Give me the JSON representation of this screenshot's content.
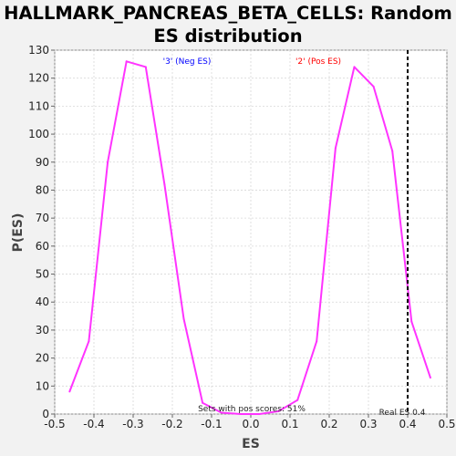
{
  "chart_data": {
    "type": "line",
    "title": "HALLMARK_PANCREAS_BETA_CELLS: Random ES distribution",
    "title_lines": [
      "HALLMARK_PANCREAS_BETA_CELLS: Random",
      "ES distribution"
    ],
    "xlabel": "ES",
    "ylabel": "P(ES)",
    "xlim": [
      -0.5,
      0.5
    ],
    "ylim": [
      0,
      130
    ],
    "xticks": [
      -0.5,
      -0.4,
      -0.3,
      -0.2,
      -0.1,
      0.0,
      0.1,
      0.2,
      0.3,
      0.4,
      0.5
    ],
    "xtick_labels": [
      "-0.5",
      "-0.4",
      "-0.3",
      "-0.2",
      "-0.1",
      "0.0",
      "0.1",
      "0.2",
      "0.3",
      "0.4",
      "0.5"
    ],
    "yticks": [
      0,
      10,
      20,
      30,
      40,
      50,
      60,
      70,
      80,
      90,
      100,
      110,
      120,
      130
    ],
    "ytick_labels": [
      "0",
      "10",
      "20",
      "30",
      "40",
      "50",
      "60",
      "70",
      "80",
      "90",
      "100",
      "110",
      "120",
      "130"
    ],
    "grid": true,
    "series": [
      {
        "color": "#ff33ff",
        "x": [
          -0.462,
          -0.413,
          -0.365,
          -0.317,
          -0.268,
          -0.22,
          -0.171,
          -0.123,
          -0.075,
          -0.026,
          0.022,
          0.071,
          0.119,
          0.168,
          0.216,
          0.264,
          0.313,
          0.361,
          0.41,
          0.458
        ],
        "y": [
          8,
          26,
          90,
          126,
          124,
          82,
          34,
          4,
          0.5,
          0,
          0,
          1,
          5,
          26,
          95,
          124,
          117,
          94,
          33,
          13
        ]
      }
    ],
    "real_es": {
      "x": 0.4,
      "label": "Real ES 0.4",
      "color": "#000000"
    },
    "annotations": {
      "neg_label": "'3' (Neg ES)",
      "neg_color": "#0000ff",
      "pos_label": "'2' (Pos ES)",
      "pos_color": "#ff0000",
      "pos_scores": "Sets with pos scores: 51%"
    },
    "plot_background": "#ffffff",
    "grid_color": "#d8d8d8"
  }
}
